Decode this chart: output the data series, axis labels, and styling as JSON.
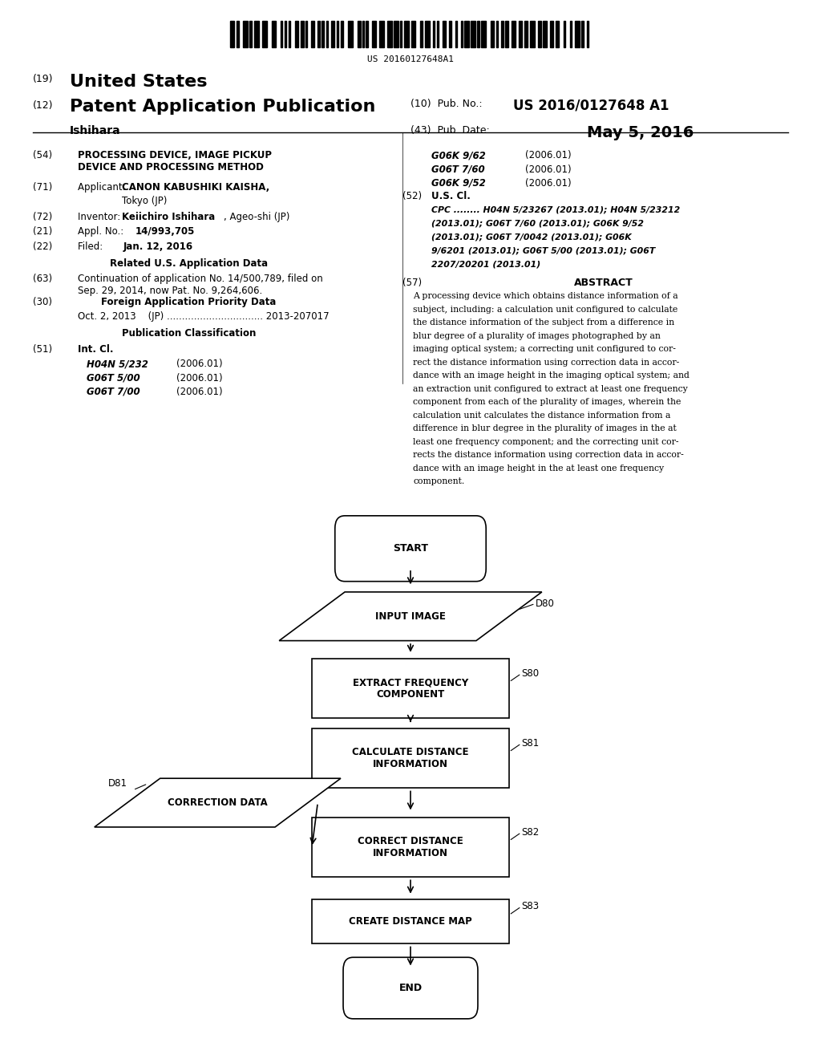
{
  "bg_color": "#ffffff",
  "barcode_text": "US 20160127648A1",
  "intcl_lines": [
    [
      "H04N 5/232",
      "(2006.01)"
    ],
    [
      "G06T 5/00",
      "(2006.01)"
    ],
    [
      "G06T 7/00",
      "(2006.01)"
    ]
  ],
  "right_intcl_lines": [
    [
      "G06K 9/62",
      "(2006.01)"
    ],
    [
      "G06T 7/60",
      "(2006.01)"
    ],
    [
      "G06K 9/52",
      "(2006.01)"
    ]
  ],
  "cpc_lines": [
    "CPC ........ H04N 5/23267 (2013.01); H04N 5/23212",
    "(2013.01); G06T 7/60 (2013.01); G06K 9/52",
    "(2013.01); G06T 7/0042 (2013.01); G06K",
    "9/6201 (2013.01); G06T 5/00 (2013.01); G06T",
    "2207/20201 (2013.01)"
  ],
  "abstract_lines": [
    "A processing device which obtains distance information of a",
    "subject, including: a calculation unit configured to calculate",
    "the distance information of the subject from a difference in",
    "blur degree of a plurality of images photographed by an",
    "imaging optical system; a correcting unit configured to cor-",
    "rect the distance information using correction data in accor-",
    "dance with an image height in the imaging optical system; and",
    "an extraction unit configured to extract at least one frequency",
    "component from each of the plurality of images, wherein the",
    "calculation unit calculates the distance information from a",
    "difference in blur degree in the plurality of images in the at",
    "least one frequency component; and the correcting unit cor-",
    "rects the distance information using correction data in accor-",
    "dance with an image height in the at least one frequency",
    "component."
  ]
}
